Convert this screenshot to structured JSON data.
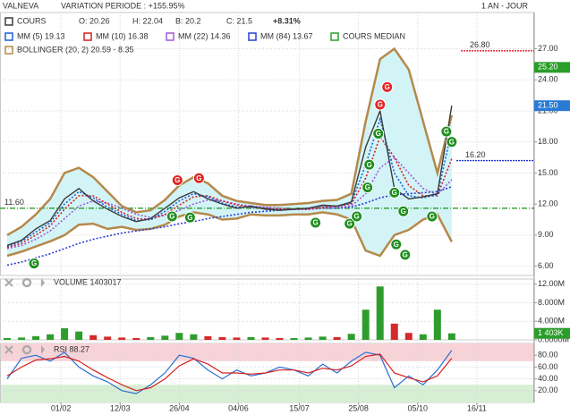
{
  "chart_data": [
    {
      "type": "line",
      "title": "VALNEVA",
      "subtitle": "VARIATION PERIODE : +155.95%",
      "period": "1 AN - JOUR",
      "quote": [
        "O: 20.26",
        "H: 22.04",
        "B: 20.2",
        "C: 21.5"
      ],
      "change": "+8.31%",
      "median": "COURS MEDIAN",
      "x": [
        4,
        12,
        20,
        28,
        36,
        44,
        52,
        60,
        68,
        76,
        84,
        92,
        100,
        108,
        116,
        124,
        132,
        140,
        148,
        156,
        164,
        172,
        180,
        188,
        196,
        204,
        212,
        220,
        228,
        236,
        244,
        252
      ],
      "series": [
        {
          "name": "COURS",
          "color": "#3a3a3a",
          "values": [
            8.0,
            8.5,
            9.6,
            10.4,
            12.5,
            13.5,
            12.3,
            11.5,
            10.8,
            10.3,
            10.6,
            11.6,
            12.6,
            13.2,
            12.5,
            12.0,
            11.6,
            11.8,
            11.5,
            11.4,
            11.5,
            11.6,
            11.9,
            11.8,
            12.2,
            17.5,
            21.0,
            13.5,
            12.5,
            12.7,
            13.0,
            21.5
          ]
        },
        {
          "name": "MM (5) 19.13",
          "color": "#1f5fd6",
          "values": [
            7.9,
            8.4,
            9.3,
            10.2,
            12.0,
            13.2,
            12.6,
            11.7,
            11.0,
            10.4,
            10.5,
            11.3,
            12.3,
            13.0,
            12.7,
            12.1,
            11.7,
            11.7,
            11.6,
            11.4,
            11.5,
            11.6,
            11.8,
            11.8,
            12.1,
            15.8,
            20.2,
            15.0,
            12.8,
            12.6,
            12.9,
            19.13
          ]
        },
        {
          "name": "MM (10) 16.38",
          "color": "#d62020",
          "values": [
            7.8,
            8.2,
            9.0,
            9.9,
            11.5,
            12.8,
            12.8,
            12.0,
            11.2,
            10.6,
            10.5,
            11.0,
            11.9,
            12.7,
            12.8,
            12.3,
            11.9,
            11.7,
            11.6,
            11.5,
            11.5,
            11.5,
            11.7,
            11.8,
            12.0,
            14.5,
            18.5,
            16.5,
            13.8,
            12.8,
            12.8,
            16.38
          ]
        },
        {
          "name": "MM (22) 14.36",
          "color": "#a05ad8",
          "values": [
            7.7,
            8.0,
            8.6,
            9.4,
            10.6,
            11.8,
            12.3,
            12.1,
            11.6,
            11.0,
            10.7,
            10.9,
            11.4,
            12.0,
            12.4,
            12.3,
            12.0,
            11.8,
            11.7,
            11.6,
            11.5,
            11.5,
            11.6,
            11.7,
            11.8,
            13.0,
            15.5,
            16.5,
            15.0,
            13.5,
            12.9,
            14.36
          ]
        },
        {
          "name": "MM (84) 13.67",
          "color": "#2a3fd0",
          "values": [
            6.1,
            6.4,
            6.8,
            7.2,
            7.7,
            8.2,
            8.6,
            8.9,
            9.2,
            9.4,
            9.6,
            9.8,
            10.1,
            10.3,
            10.6,
            10.8,
            11.0,
            11.2,
            11.3,
            11.4,
            11.5,
            11.5,
            11.6,
            11.6,
            11.7,
            12.1,
            12.6,
            12.9,
            13.0,
            13.1,
            13.2,
            13.67
          ]
        }
      ],
      "bollinger": {
        "name": "BOLLINGER (20, 2) 20.59 - 8.35",
        "color": "#b5894a",
        "fill": "#d3f4f7",
        "upper": [
          9.0,
          9.8,
          11.0,
          12.5,
          15.0,
          15.5,
          14.6,
          13.2,
          11.8,
          11.2,
          11.4,
          12.4,
          13.8,
          14.6,
          14.0,
          12.8,
          12.3,
          12.1,
          11.9,
          11.9,
          12.0,
          12.1,
          12.3,
          12.4,
          13.0,
          20.0,
          26.0,
          27.0,
          25.0,
          20.0,
          15.0,
          20.59
        ],
        "lower": [
          7.0,
          7.4,
          7.9,
          8.4,
          9.0,
          10.0,
          10.1,
          9.6,
          9.8,
          9.5,
          9.6,
          10.0,
          10.8,
          11.2,
          11.0,
          10.5,
          10.6,
          11.0,
          10.9,
          10.9,
          11.0,
          11.0,
          11.2,
          11.0,
          10.5,
          7.5,
          7.0,
          9.0,
          9.5,
          10.5,
          11.0,
          8.35
        ]
      },
      "median_color": "#2a9d2a",
      "signals": [
        {
          "x": 19,
          "y": 6.26,
          "label": "G",
          "color": "#1e8e1e"
        },
        {
          "x": 96,
          "y": 10.8,
          "label": "G",
          "color": "#1e8e1e"
        },
        {
          "x": 106,
          "y": 10.7,
          "label": "G",
          "color": "#1e8e1e"
        },
        {
          "x": 176,
          "y": 10.2,
          "label": "G",
          "color": "#1e8e1e"
        },
        {
          "x": 195,
          "y": 10.1,
          "label": "G",
          "color": "#1e8e1e"
        },
        {
          "x": 199,
          "y": 10.8,
          "label": "G",
          "color": "#1e8e1e"
        },
        {
          "x": 205,
          "y": 13.6,
          "label": "G",
          "color": "#1e8e1e"
        },
        {
          "x": 206,
          "y": 15.8,
          "label": "G",
          "color": "#1e8e1e"
        },
        {
          "x": 211,
          "y": 18.8,
          "label": "G",
          "color": "#1e8e1e"
        },
        {
          "x": 220,
          "y": 13.1,
          "label": "G",
          "color": "#1e8e1e"
        },
        {
          "x": 225,
          "y": 11.3,
          "label": "G",
          "color": "#1e8e1e"
        },
        {
          "x": 221,
          "y": 8.1,
          "label": "G",
          "color": "#1e8e1e"
        },
        {
          "x": 226,
          "y": 7.1,
          "label": "G",
          "color": "#1e8e1e"
        },
        {
          "x": 241,
          "y": 10.8,
          "label": "G",
          "color": "#1e8e1e"
        },
        {
          "x": 249,
          "y": 19.0,
          "label": "G",
          "color": "#1e8e1e"
        },
        {
          "x": 252,
          "y": 18.0,
          "label": "G",
          "color": "#1e8e1e"
        },
        {
          "x": 99,
          "y": 14.3,
          "label": "G",
          "color": "#e02424"
        },
        {
          "x": 111,
          "y": 14.5,
          "label": "G",
          "color": "#e02424"
        },
        {
          "x": 216,
          "y": 23.3,
          "label": "G",
          "color": "#e02424"
        },
        {
          "x": 212,
          "y": 21.6,
          "label": "G",
          "color": "#e02424"
        }
      ],
      "levels": [
        {
          "value": 26.8,
          "label": "26.80",
          "color": "#e0201e"
        },
        {
          "value": 16.2,
          "label": "16.20",
          "color": "#1a2fd8"
        },
        {
          "value": 11.6,
          "label": "11.60",
          "color": "#2a9d2a"
        }
      ],
      "price_tags": [
        {
          "value": 25.2,
          "label": "25.20",
          "color": "#2a9d2a"
        },
        {
          "value": 21.5,
          "label": "21.50",
          "color": "#2b7bd4"
        }
      ],
      "ylim": [
        5.1,
        30.5
      ],
      "yticks": [
        {
          "value": 6,
          "label": "6.00"
        },
        {
          "value": 9,
          "label": "9.00"
        },
        {
          "value": 12,
          "label": "12.00"
        },
        {
          "value": 15,
          "label": "15.00"
        },
        {
          "value": 18,
          "label": "18.00"
        },
        {
          "value": 21,
          "label": "21.00"
        },
        {
          "value": 24,
          "label": "24.00"
        },
        {
          "value": 27,
          "label": "27.00"
        }
      ],
      "grid": true
    },
    {
      "type": "bar",
      "title": "VOLUME 1403017",
      "up_color": "#2e9d2e",
      "down_color": "#d42a2a",
      "values": [
        0.4,
        0.5,
        0.8,
        1.2,
        2.5,
        1.8,
        1.0,
        0.7,
        0.5,
        0.4,
        0.6,
        0.9,
        1.5,
        1.2,
        0.8,
        0.6,
        0.5,
        0.6,
        0.5,
        0.4,
        0.4,
        0.5,
        0.7,
        0.6,
        1.3,
        6.5,
        11.5,
        3.5,
        1.5,
        1.2,
        6.5,
        1.403017
      ],
      "current": {
        "value": 1.403017,
        "label": "1 403K",
        "color": "#2a9d2a"
      },
      "ylim": [
        0,
        13.1
      ],
      "yticks": [
        {
          "value": 0,
          "label": "0.0000M"
        },
        {
          "value": 4,
          "label": "4.000M"
        },
        {
          "value": 8,
          "label": "8.000M"
        },
        {
          "value": 12,
          "label": "12.00M"
        }
      ],
      "grid": true
    },
    {
      "type": "line",
      "series": [
        {
          "name": "RSI 88.27",
          "color": "#2b6fd0",
          "values": [
            40,
            75,
            80,
            70,
            85,
            60,
            45,
            35,
            20,
            15,
            30,
            50,
            80,
            75,
            55,
            40,
            55,
            45,
            50,
            60,
            55,
            45,
            65,
            50,
            70,
            85,
            80,
            25,
            45,
            30,
            55,
            88.27
          ]
        },
        {
          "color": "#d62020",
          "values": [
            45,
            60,
            72,
            74,
            78,
            70,
            55,
            42,
            30,
            20,
            25,
            40,
            62,
            74,
            65,
            50,
            50,
            48,
            50,
            55,
            55,
            50,
            58,
            55,
            62,
            78,
            82,
            50,
            42,
            35,
            45,
            75
          ]
        }
      ],
      "bands": [
        {
          "from": 70,
          "to": 100,
          "color": "#f7d3d7"
        },
        {
          "from": 0,
          "to": 30,
          "color": "#d6efd4"
        }
      ],
      "ylim": [
        0,
        100
      ],
      "yticks": [
        {
          "value": 20,
          "label": "20.00"
        },
        {
          "value": 40,
          "label": "40.00"
        },
        {
          "value": 60,
          "label": "60.00"
        },
        {
          "value": 80,
          "label": "80.00"
        }
      ],
      "xlim": [
        0,
        298
      ],
      "xticks": [
        {
          "value": 34,
          "label": "01/02"
        },
        {
          "value": 67,
          "label": "12/03"
        },
        {
          "value": 100,
          "label": "26/04"
        },
        {
          "value": 133,
          "label": "04/06"
        },
        {
          "value": 167,
          "label": "15/07"
        },
        {
          "value": 200,
          "label": "25/08"
        },
        {
          "value": 233,
          "label": "05/10"
        },
        {
          "value": 266,
          "label": "16/11"
        }
      ],
      "grid": true
    }
  ]
}
